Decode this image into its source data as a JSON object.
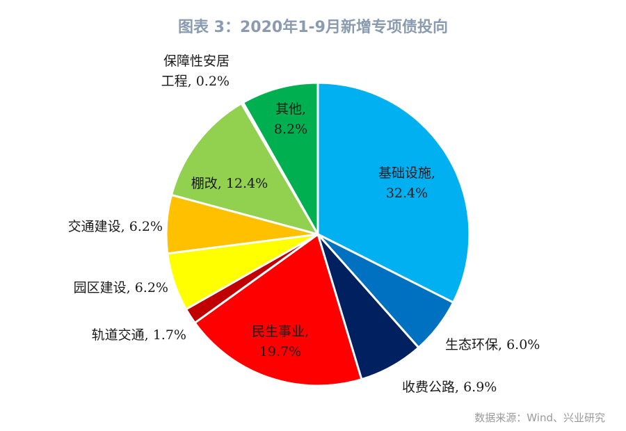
{
  "title": "图表 3：2020年1-9月新增专项债投向",
  "source": "数据来源：Wind、兴业研究",
  "chart_data": {
    "type": "pie",
    "title": "图表 3：2020年1-9月新增专项债投向",
    "start_angle_deg": 0,
    "direction": "clockwise",
    "slices": [
      {
        "name": "基础设施",
        "value": 32.4,
        "label": "32.4%",
        "color": "#00b0f0"
      },
      {
        "name": "生态环保",
        "value": 6.0,
        "label": "6.0%",
        "color": "#0070c0"
      },
      {
        "name": "收费公路",
        "value": 6.9,
        "label": "6.9%",
        "color": "#002060"
      },
      {
        "name": "民生事业",
        "value": 19.7,
        "label": "19.7%",
        "color": "#ff0000"
      },
      {
        "name": "轨道交通",
        "value": 1.7,
        "label": "1.7%",
        "color": "#c00000"
      },
      {
        "name": "园区建设",
        "value": 6.2,
        "label": "6.2%",
        "color": "#ffff00"
      },
      {
        "name": "交通建设",
        "value": 6.2,
        "label": "6.2%",
        "color": "#ffc000"
      },
      {
        "name": "棚改",
        "value": 12.4,
        "label": "12.4%",
        "color": "#92d050"
      },
      {
        "name": "保障性安居工程",
        "value": 0.2,
        "label": "0.2%",
        "color": "#00b050"
      },
      {
        "name": "其他",
        "value": 8.2,
        "label": "8.2%",
        "color": "#00b050"
      }
    ],
    "labels": {
      "基础设施": [
        "基础设施,",
        "32.4%"
      ],
      "生态环保": [
        "生态环保, 6.0%"
      ],
      "收费公路": [
        "收费公路, 6.9%"
      ],
      "民生事业": [
        "民生事业,",
        "19.7%"
      ],
      "轨道交通": [
        "轨道交通, 1.7%"
      ],
      "园区建设": [
        "园区建设, 6.2%"
      ],
      "交通建设": [
        "交通建设, 6.2%"
      ],
      "棚改": [
        "棚改, 12.4%"
      ],
      "保障性安居工程": [
        "保障性安居",
        "工程, 0.2%"
      ],
      "其他": [
        "其他,",
        "8.2%"
      ]
    }
  }
}
